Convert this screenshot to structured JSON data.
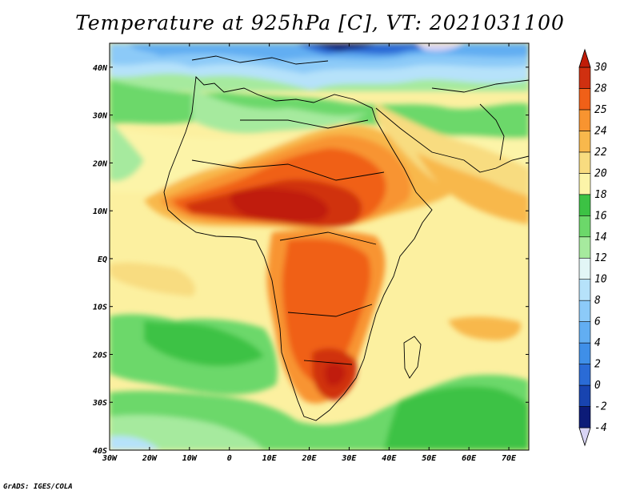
{
  "title": "Temperature at 925hPa [C], VT: 2021031100",
  "credit": "GrADS: IGES/COLA",
  "map": {
    "lon_range": [
      -30,
      75
    ],
    "lat_range": [
      -40,
      45
    ],
    "lon_ticks": [
      {
        "lon": -30,
        "label": "30W"
      },
      {
        "lon": -20,
        "label": "20W"
      },
      {
        "lon": -10,
        "label": "10W"
      },
      {
        "lon": 0,
        "label": "0"
      },
      {
        "lon": 10,
        "label": "10E"
      },
      {
        "lon": 20,
        "label": "20E"
      },
      {
        "lon": 30,
        "label": "30E"
      },
      {
        "lon": 40,
        "label": "40E"
      },
      {
        "lon": 50,
        "label": "50E"
      },
      {
        "lon": 60,
        "label": "60E"
      },
      {
        "lon": 70,
        "label": "70E"
      }
    ],
    "lat_ticks": [
      {
        "lat": 40,
        "label": "40N"
      },
      {
        "lat": 30,
        "label": "30N"
      },
      {
        "lat": 20,
        "label": "20N"
      },
      {
        "lat": 10,
        "label": "10N"
      },
      {
        "lat": 0,
        "label": "EQ"
      },
      {
        "lat": -10,
        "label": "10S"
      },
      {
        "lat": -20,
        "label": "20S"
      },
      {
        "lat": -30,
        "label": "30S"
      },
      {
        "lat": -40,
        "label": "40S"
      }
    ]
  },
  "colorbar": {
    "levels": [
      "-4",
      "-2",
      "0",
      "2",
      "4",
      "6",
      "8",
      "10",
      "12",
      "14",
      "16",
      "18",
      "20",
      "22",
      "24",
      "25",
      "28",
      "30"
    ],
    "colors": [
      "#d8d4f4",
      "#0c1b78",
      "#1844b0",
      "#2a6bd6",
      "#3f8fe8",
      "#62aef2",
      "#8ccaf8",
      "#b6e2fa",
      "#e2f6f6",
      "#a6ea9e",
      "#6cd86a",
      "#3cc244",
      "#fcf4a8",
      "#f8dc80",
      "#f8b84c",
      "#f89430",
      "#f06018",
      "#d03010",
      "#c01c08"
    ]
  }
}
